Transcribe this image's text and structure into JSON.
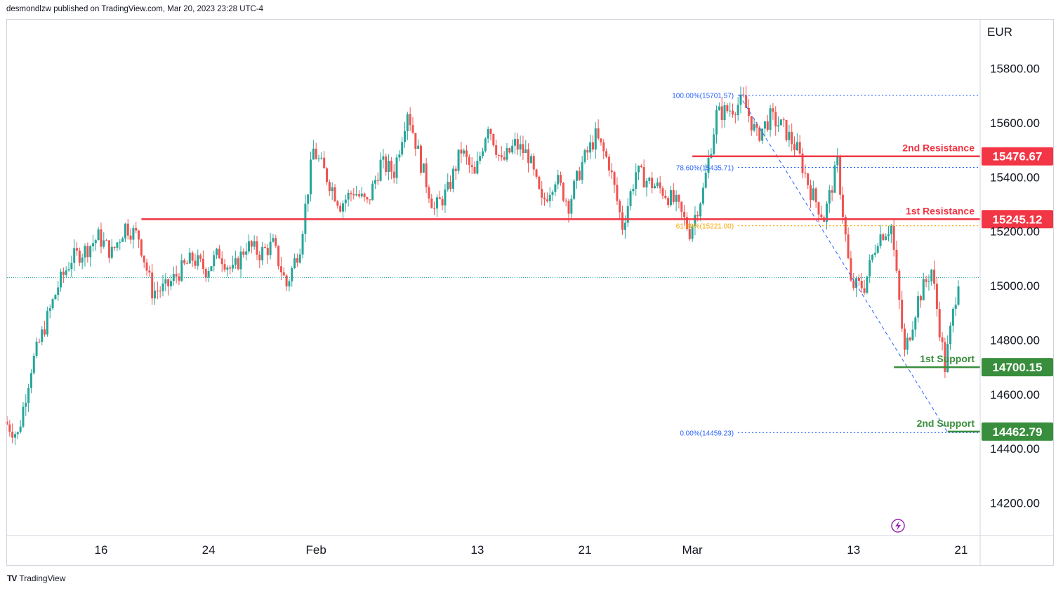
{
  "header": {
    "text": "desmondlzw published on TradingView.com, Mar 20, 2023 23:28 UTC-4"
  },
  "footer": {
    "logo": "TV",
    "brand": "TradingView"
  },
  "colors": {
    "up": "#26a69a",
    "down": "#ef5350",
    "resistance": "#f23645",
    "support": "#388e3c",
    "fib": "#2962ff",
    "fib_618": "#f7a600"
  },
  "chart_data": {
    "type": "candlestick",
    "currency": "EUR",
    "y_ticks": [
      "15800.00",
      "15600.00",
      "15400.00",
      "15200.00",
      "15000.00",
      "14800.00",
      "14600.00",
      "14400.00",
      "14200.00"
    ],
    "y_tick_values": [
      15800,
      15600,
      15400,
      15200,
      15000,
      14800,
      14600,
      14400,
      14200
    ],
    "ylim": [
      14080,
      15980
    ],
    "x_ticks": [
      {
        "label": "16",
        "day": 16
      },
      {
        "label": "24",
        "day": 24
      },
      {
        "label": "Feb",
        "day": 32
      },
      {
        "label": "13",
        "day": 44
      },
      {
        "label": "21",
        "day": 52
      },
      {
        "label": "Mar",
        "day": 60
      },
      {
        "label": "13",
        "day": 72
      },
      {
        "label": "21",
        "day": 80
      }
    ],
    "last_price": 15030,
    "levels": [
      {
        "name": "2nd Resistance",
        "value": "15476.67",
        "price": 15476.67,
        "kind": "resistance",
        "from_day": 60
      },
      {
        "name": "1st Resistance",
        "value": "15245.12",
        "price": 15245.12,
        "kind": "resistance",
        "from_day": 19
      },
      {
        "name": "1st Support",
        "value": "14700.15",
        "price": 14700.15,
        "kind": "support",
        "from_day": 75
      },
      {
        "name": "2nd Support",
        "value": "14462.79",
        "price": 14462.79,
        "kind": "support",
        "from_day": 79
      }
    ],
    "fibonacci": [
      {
        "label": "100.00%(15701.57)",
        "price": 15701.57
      },
      {
        "label": "78.60%(15435.71)",
        "price": 15435.71
      },
      {
        "label": "61.80%(15221.00)",
        "price": 15221.0
      },
      {
        "label": "0.00%(14459.23)",
        "price": 14459.23
      }
    ],
    "fib_trend": {
      "from_day": 63.5,
      "from_price": 15701.57,
      "to_day": 79,
      "to_price": 14459.23
    },
    "segments": [
      {
        "day": 9,
        "price": 14500
      },
      {
        "day": 10,
        "price": 14450
      },
      {
        "day": 11,
        "price": 14700
      },
      {
        "day": 12,
        "price": 14850
      },
      {
        "day": 13,
        "price": 15000
      },
      {
        "day": 14,
        "price": 15100
      },
      {
        "day": 15,
        "price": 15130
      },
      {
        "day": 16,
        "price": 15180
      },
      {
        "day": 17,
        "price": 15120
      },
      {
        "day": 18,
        "price": 15220
      },
      {
        "day": 19,
        "price": 15180
      },
      {
        "day": 20,
        "price": 14980
      },
      {
        "day": 21,
        "price": 14990
      },
      {
        "day": 22,
        "price": 15050
      },
      {
        "day": 23,
        "price": 15100
      },
      {
        "day": 24,
        "price": 15060
      },
      {
        "day": 25,
        "price": 15120
      },
      {
        "day": 26,
        "price": 15050
      },
      {
        "day": 27,
        "price": 15150
      },
      {
        "day": 28,
        "price": 15120
      },
      {
        "day": 29,
        "price": 15150
      },
      {
        "day": 30,
        "price": 15000
      },
      {
        "day": 31,
        "price": 15150
      },
      {
        "day": 32,
        "price": 15500
      },
      {
        "day": 33,
        "price": 15400
      },
      {
        "day": 34,
        "price": 15300
      },
      {
        "day": 35,
        "price": 15350
      },
      {
        "day": 36,
        "price": 15300
      },
      {
        "day": 37,
        "price": 15450
      },
      {
        "day": 38,
        "price": 15420
      },
      {
        "day": 39,
        "price": 15650
      },
      {
        "day": 40,
        "price": 15450
      },
      {
        "day": 41,
        "price": 15280
      },
      {
        "day": 42,
        "price": 15350
      },
      {
        "day": 43,
        "price": 15500
      },
      {
        "day": 44,
        "price": 15400
      },
      {
        "day": 45,
        "price": 15600
      },
      {
        "day": 46,
        "price": 15450
      },
      {
        "day": 47,
        "price": 15520
      },
      {
        "day": 48,
        "price": 15480
      },
      {
        "day": 49,
        "price": 15300
      },
      {
        "day": 50,
        "price": 15400
      },
      {
        "day": 51,
        "price": 15300
      },
      {
        "day": 52,
        "price": 15450
      },
      {
        "day": 53,
        "price": 15550
      },
      {
        "day": 54,
        "price": 15450
      },
      {
        "day": 55,
        "price": 15220
      },
      {
        "day": 56,
        "price": 15420
      },
      {
        "day": 57,
        "price": 15380
      },
      {
        "day": 58,
        "price": 15350
      },
      {
        "day": 59,
        "price": 15300
      },
      {
        "day": 60,
        "price": 15200
      },
      {
        "day": 61,
        "price": 15350
      },
      {
        "day": 62,
        "price": 15630
      },
      {
        "day": 63,
        "price": 15650
      },
      {
        "day": 64,
        "price": 15680
      },
      {
        "day": 65,
        "price": 15550
      },
      {
        "day": 66,
        "price": 15620
      },
      {
        "day": 67,
        "price": 15580
      },
      {
        "day": 68,
        "price": 15500
      },
      {
        "day": 69,
        "price": 15350
      },
      {
        "day": 70,
        "price": 15250
      },
      {
        "day": 71,
        "price": 15450
      },
      {
        "day": 72,
        "price": 15000
      },
      {
        "day": 73,
        "price": 15000
      },
      {
        "day": 74,
        "price": 15180
      },
      {
        "day": 75,
        "price": 15220
      },
      {
        "day": 76,
        "price": 14750
      },
      {
        "day": 77,
        "price": 14950
      },
      {
        "day": 78,
        "price": 15060
      },
      {
        "day": 79,
        "price": 14700
      },
      {
        "day": 80,
        "price": 15030
      }
    ]
  }
}
